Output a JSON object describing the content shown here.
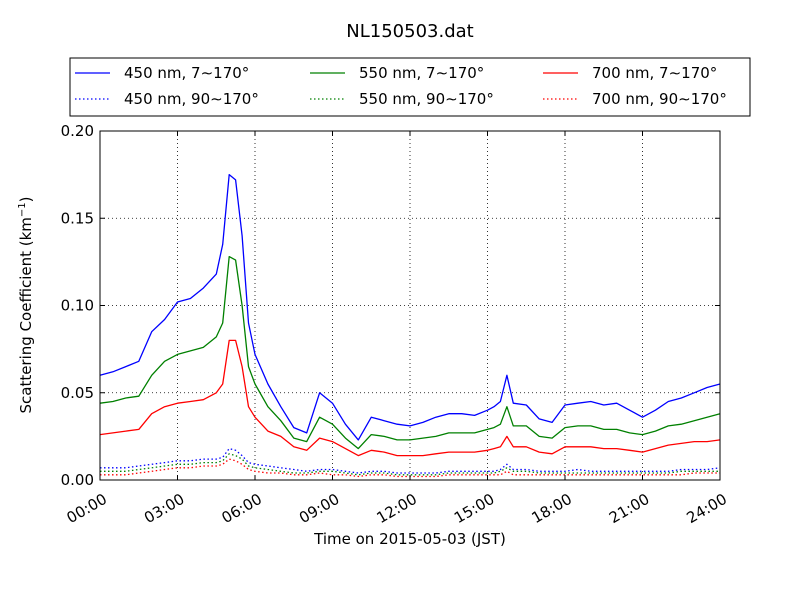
{
  "chart_data": {
    "type": "line",
    "title": "NL150503.dat",
    "xlabel": "Time on 2015-05-03 (JST)",
    "ylabel": "Scattering Coefficient (km",
    "ylabel_sup": "−1",
    "ylabel_close": ")",
    "xlim": [
      0,
      24
    ],
    "ylim": [
      0,
      0.2
    ],
    "xticks": [
      0,
      3,
      6,
      9,
      12,
      15,
      18,
      21,
      24
    ],
    "xtick_labels": [
      "00:00",
      "03:00",
      "06:00",
      "09:00",
      "12:00",
      "15:00",
      "18:00",
      "21:00",
      "24:00"
    ],
    "yticks": [
      0,
      0.05,
      0.1,
      0.15,
      0.2
    ],
    "ytick_labels": [
      "0.00",
      "0.05",
      "0.10",
      "0.15",
      "0.20"
    ],
    "grid": true,
    "legend_position": "top, above plot",
    "x": [
      0,
      0.5,
      1,
      1.5,
      2,
      2.5,
      3,
      3.5,
      4,
      4.5,
      4.75,
      5,
      5.25,
      5.5,
      5.75,
      6,
      6.5,
      7,
      7.5,
      8,
      8.5,
      9,
      9.5,
      10,
      10.5,
      11,
      11.5,
      12,
      12.5,
      13,
      13.5,
      14,
      14.5,
      15,
      15.25,
      15.5,
      15.75,
      16,
      16.5,
      17,
      17.5,
      18,
      18.5,
      19,
      19.5,
      20,
      20.5,
      21,
      21.5,
      22,
      22.5,
      23,
      23.5,
      24
    ],
    "series": [
      {
        "name": "450 nm, 7∼170°",
        "color": "#0000ff",
        "style": "solid",
        "values": [
          0.06,
          0.062,
          0.065,
          0.068,
          0.085,
          0.092,
          0.102,
          0.104,
          0.11,
          0.118,
          0.135,
          0.175,
          0.172,
          0.14,
          0.09,
          0.072,
          0.055,
          0.042,
          0.03,
          0.027,
          0.05,
          0.044,
          0.032,
          0.023,
          0.036,
          0.034,
          0.032,
          0.031,
          0.033,
          0.036,
          0.038,
          0.038,
          0.037,
          0.04,
          0.042,
          0.045,
          0.06,
          0.044,
          0.043,
          0.035,
          0.033,
          0.043,
          0.044,
          0.045,
          0.043,
          0.044,
          0.04,
          0.036,
          0.04,
          0.045,
          0.047,
          0.05,
          0.053,
          0.055
        ]
      },
      {
        "name": "550 nm, 7∼170°",
        "color": "#008000",
        "style": "solid",
        "values": [
          0.044,
          0.045,
          0.047,
          0.048,
          0.06,
          0.068,
          0.072,
          0.074,
          0.076,
          0.082,
          0.09,
          0.128,
          0.126,
          0.1,
          0.065,
          0.055,
          0.042,
          0.034,
          0.024,
          0.022,
          0.036,
          0.032,
          0.024,
          0.018,
          0.026,
          0.025,
          0.023,
          0.023,
          0.024,
          0.025,
          0.027,
          0.027,
          0.027,
          0.029,
          0.03,
          0.032,
          0.042,
          0.031,
          0.031,
          0.025,
          0.024,
          0.03,
          0.031,
          0.031,
          0.029,
          0.029,
          0.027,
          0.026,
          0.028,
          0.031,
          0.032,
          0.034,
          0.036,
          0.038
        ]
      },
      {
        "name": "700 nm, 7∼170°",
        "color": "#ff0000",
        "style": "solid",
        "values": [
          0.026,
          0.027,
          0.028,
          0.029,
          0.038,
          0.042,
          0.044,
          0.045,
          0.046,
          0.05,
          0.055,
          0.08,
          0.08,
          0.065,
          0.042,
          0.036,
          0.028,
          0.025,
          0.019,
          0.017,
          0.024,
          0.022,
          0.018,
          0.014,
          0.017,
          0.016,
          0.014,
          0.014,
          0.014,
          0.015,
          0.016,
          0.016,
          0.016,
          0.017,
          0.018,
          0.019,
          0.025,
          0.019,
          0.019,
          0.016,
          0.015,
          0.019,
          0.019,
          0.019,
          0.018,
          0.018,
          0.017,
          0.016,
          0.018,
          0.02,
          0.021,
          0.022,
          0.022,
          0.023
        ]
      },
      {
        "name": "450 nm, 90∼170°",
        "color": "#0000ff",
        "style": "dotted",
        "values": [
          0.007,
          0.007,
          0.007,
          0.008,
          0.009,
          0.01,
          0.011,
          0.011,
          0.012,
          0.012,
          0.013,
          0.018,
          0.017,
          0.014,
          0.01,
          0.009,
          0.008,
          0.007,
          0.006,
          0.005,
          0.006,
          0.006,
          0.005,
          0.004,
          0.005,
          0.005,
          0.004,
          0.004,
          0.004,
          0.004,
          0.005,
          0.005,
          0.005,
          0.005,
          0.005,
          0.006,
          0.009,
          0.006,
          0.006,
          0.005,
          0.005,
          0.005,
          0.006,
          0.005,
          0.005,
          0.005,
          0.005,
          0.005,
          0.005,
          0.005,
          0.006,
          0.006,
          0.006,
          0.007
        ]
      },
      {
        "name": "550 nm, 90∼170°",
        "color": "#008000",
        "style": "dotted",
        "values": [
          0.005,
          0.005,
          0.005,
          0.006,
          0.007,
          0.008,
          0.009,
          0.009,
          0.01,
          0.01,
          0.011,
          0.015,
          0.014,
          0.012,
          0.008,
          0.007,
          0.006,
          0.005,
          0.004,
          0.004,
          0.005,
          0.005,
          0.004,
          0.003,
          0.004,
          0.004,
          0.003,
          0.003,
          0.003,
          0.003,
          0.004,
          0.004,
          0.004,
          0.004,
          0.004,
          0.005,
          0.007,
          0.005,
          0.005,
          0.004,
          0.004,
          0.004,
          0.004,
          0.004,
          0.004,
          0.004,
          0.004,
          0.004,
          0.004,
          0.004,
          0.005,
          0.005,
          0.005,
          0.005
        ]
      },
      {
        "name": "700 nm, 90∼170°",
        "color": "#ff0000",
        "style": "dotted",
        "values": [
          0.003,
          0.003,
          0.003,
          0.004,
          0.005,
          0.006,
          0.007,
          0.007,
          0.008,
          0.008,
          0.009,
          0.012,
          0.011,
          0.009,
          0.006,
          0.005,
          0.004,
          0.004,
          0.003,
          0.003,
          0.004,
          0.003,
          0.003,
          0.002,
          0.003,
          0.003,
          0.002,
          0.002,
          0.002,
          0.002,
          0.003,
          0.003,
          0.003,
          0.003,
          0.003,
          0.003,
          0.005,
          0.003,
          0.003,
          0.003,
          0.003,
          0.003,
          0.003,
          0.003,
          0.003,
          0.003,
          0.003,
          0.003,
          0.003,
          0.003,
          0.003,
          0.004,
          0.004,
          0.004
        ]
      }
    ],
    "legend_order": [
      0,
      1,
      2,
      3,
      4,
      5
    ]
  }
}
